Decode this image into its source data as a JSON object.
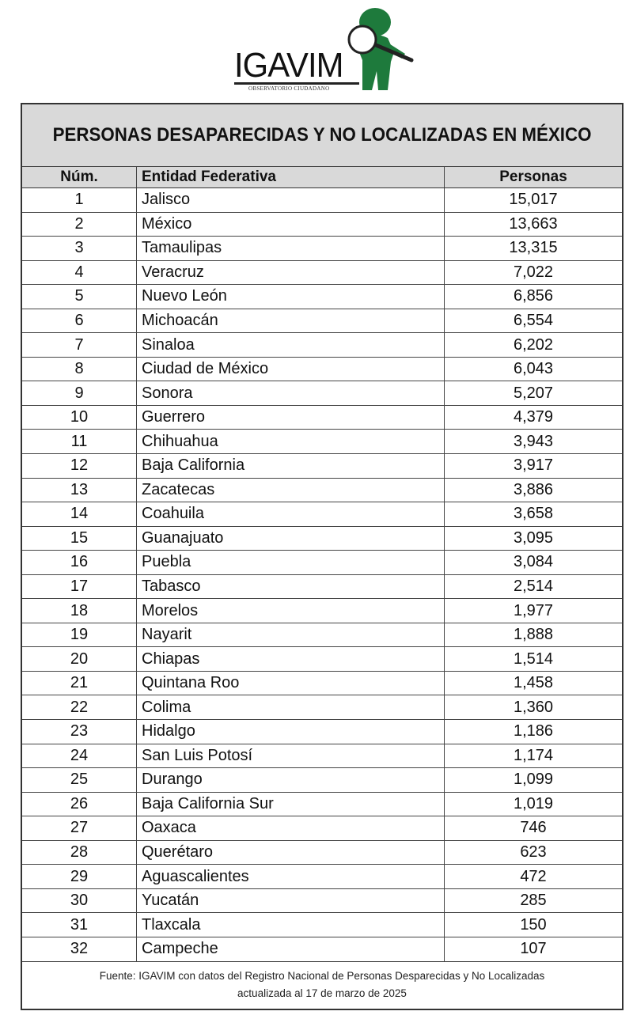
{
  "logo": {
    "name": "IGAVIM",
    "subtitle": "OBSERVATORIO CIUDADANO",
    "color": "#1e7a3c"
  },
  "title": "PERSONAS DESAPARECIDAS Y NO LOCALIZADAS EN MÉXICO",
  "headers": {
    "num": "Núm.",
    "entity": "Entidad Federativa",
    "people": "Personas"
  },
  "rows": [
    {
      "num": "1",
      "entity": "Jalisco",
      "people": "15,017"
    },
    {
      "num": "2",
      "entity": "México",
      "people": "13,663"
    },
    {
      "num": "3",
      "entity": "Tamaulipas",
      "people": "13,315"
    },
    {
      "num": "4",
      "entity": "Veracruz",
      "people": "7,022"
    },
    {
      "num": "5",
      "entity": "Nuevo León",
      "people": "6,856"
    },
    {
      "num": "6",
      "entity": "Michoacán",
      "people": "6,554"
    },
    {
      "num": "7",
      "entity": "Sinaloa",
      "people": "6,202"
    },
    {
      "num": "8",
      "entity": "Ciudad de México",
      "people": "6,043"
    },
    {
      "num": "9",
      "entity": "Sonora",
      "people": "5,207"
    },
    {
      "num": "10",
      "entity": "Guerrero",
      "people": "4,379"
    },
    {
      "num": "11",
      "entity": "Chihuahua",
      "people": "3,943"
    },
    {
      "num": "12",
      "entity": "Baja California",
      "people": "3,917"
    },
    {
      "num": "13",
      "entity": "Zacatecas",
      "people": "3,886"
    },
    {
      "num": "14",
      "entity": "Coahuila",
      "people": "3,658"
    },
    {
      "num": "15",
      "entity": "Guanajuato",
      "people": "3,095"
    },
    {
      "num": "16",
      "entity": "Puebla",
      "people": "3,084"
    },
    {
      "num": "17",
      "entity": "Tabasco",
      "people": "2,514"
    },
    {
      "num": "18",
      "entity": "Morelos",
      "people": "1,977"
    },
    {
      "num": "19",
      "entity": "Nayarit",
      "people": "1,888"
    },
    {
      "num": "20",
      "entity": "Chiapas",
      "people": "1,514"
    },
    {
      "num": "21",
      "entity": "Quintana Roo",
      "people": "1,458"
    },
    {
      "num": "22",
      "entity": "Colima",
      "people": "1,360"
    },
    {
      "num": "23",
      "entity": "Hidalgo",
      "people": "1,186"
    },
    {
      "num": "24",
      "entity": "San Luis Potosí",
      "people": "1,174"
    },
    {
      "num": "25",
      "entity": "Durango",
      "people": "1,099"
    },
    {
      "num": "26",
      "entity": "Baja California Sur",
      "people": "1,019"
    },
    {
      "num": "27",
      "entity": "Oaxaca",
      "people": "746"
    },
    {
      "num": "28",
      "entity": "Querétaro",
      "people": "623"
    },
    {
      "num": "29",
      "entity": "Aguascalientes",
      "people": "472"
    },
    {
      "num": "30",
      "entity": "Yucatán",
      "people": "285"
    },
    {
      "num": "31",
      "entity": "Tlaxcala",
      "people": "150"
    },
    {
      "num": "32",
      "entity": "Campeche",
      "people": "107"
    }
  ],
  "footer": {
    "line1": "Fuente: IGAVIM con datos del Registro Nacional de Personas Desparecidas y No Localizadas",
    "line2": "actualizada al 17 de marzo de 2025"
  }
}
